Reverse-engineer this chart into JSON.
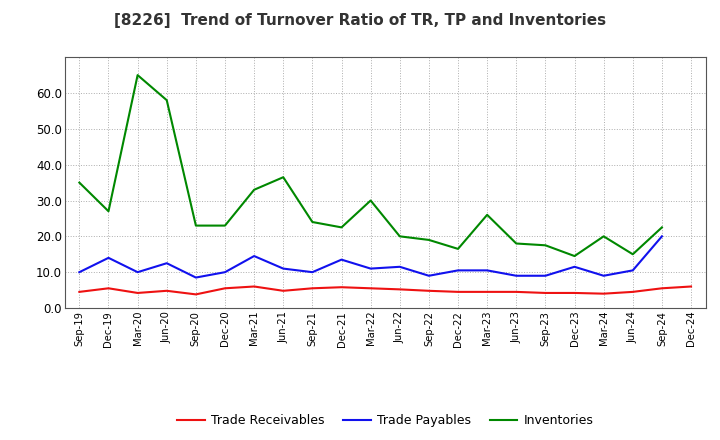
{
  "title": "[8226]  Trend of Turnover Ratio of TR, TP and Inventories",
  "labels": [
    "Sep-19",
    "Dec-19",
    "Mar-20",
    "Jun-20",
    "Sep-20",
    "Dec-20",
    "Mar-21",
    "Jun-21",
    "Sep-21",
    "Dec-21",
    "Mar-22",
    "Jun-22",
    "Sep-22",
    "Dec-22",
    "Mar-23",
    "Jun-23",
    "Sep-23",
    "Dec-23",
    "Mar-24",
    "Jun-24",
    "Sep-24",
    "Dec-24"
  ],
  "trade_receivables": [
    4.5,
    5.5,
    4.2,
    4.8,
    3.8,
    5.5,
    6.0,
    4.8,
    5.5,
    5.8,
    5.5,
    5.2,
    4.8,
    4.5,
    4.5,
    4.5,
    4.2,
    4.2,
    4.0,
    4.5,
    5.5,
    6.0
  ],
  "trade_payables": [
    10.0,
    14.0,
    10.0,
    12.5,
    8.5,
    10.0,
    14.5,
    11.0,
    10.0,
    13.5,
    11.0,
    11.5,
    9.0,
    10.5,
    10.5,
    9.0,
    9.0,
    11.5,
    9.0,
    10.5,
    20.0,
    null
  ],
  "inventories": [
    35.0,
    27.0,
    65.0,
    58.0,
    23.0,
    23.0,
    33.0,
    36.5,
    24.0,
    22.5,
    30.0,
    20.0,
    19.0,
    16.5,
    26.0,
    18.0,
    17.5,
    14.5,
    20.0,
    15.0,
    22.5,
    null
  ],
  "color_tr": "#ee1111",
  "color_tp": "#1111ee",
  "color_inv": "#008800",
  "ylim": [
    0.0,
    70.0
  ],
  "yticks": [
    0.0,
    10.0,
    20.0,
    30.0,
    40.0,
    50.0,
    60.0
  ],
  "bg_color": "#ffffff",
  "grid_color": "#999999",
  "legend_labels": [
    "Trade Receivables",
    "Trade Payables",
    "Inventories"
  ]
}
